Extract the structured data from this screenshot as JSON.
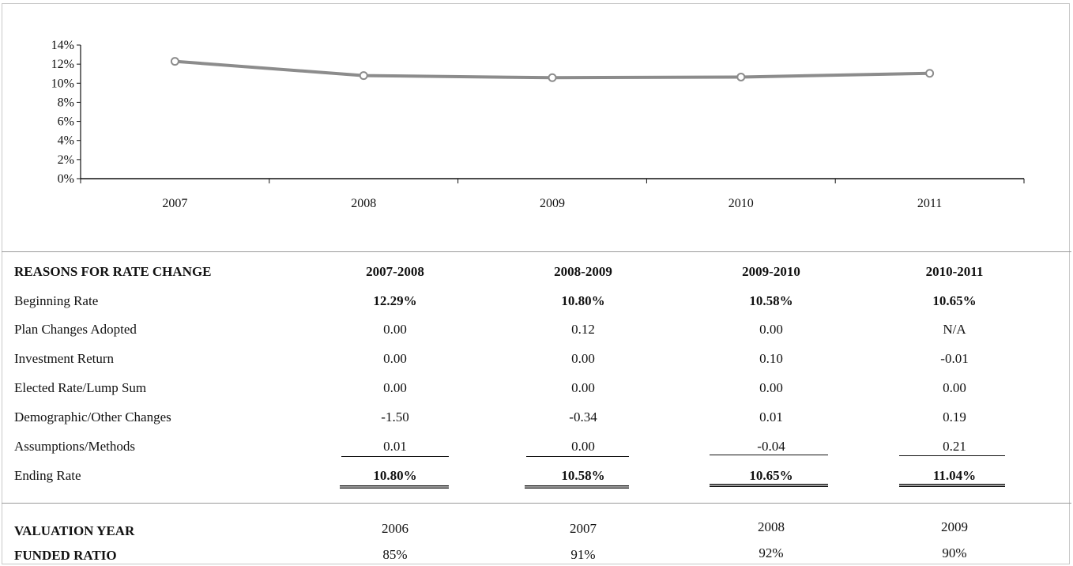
{
  "chart_data": {
    "type": "line",
    "x": [
      "2007",
      "2008",
      "2009",
      "2010",
      "2011"
    ],
    "series": [
      {
        "values": [
          12.29,
          10.8,
          10.58,
          10.65,
          11.04
        ]
      }
    ],
    "y_ticks": [
      "14%",
      "12%",
      "10%",
      "8%",
      "6%",
      "4%",
      "2%",
      "0%"
    ],
    "ylim": [
      0,
      14
    ],
    "line_color": "#8c8c8c",
    "marker": "circle",
    "grid": false
  },
  "table": {
    "header": {
      "label": "REASONS FOR RATE CHANGE",
      "periods": [
        "2007-2008",
        "2008-2009",
        "2009-2010",
        "2010-2011"
      ]
    },
    "rows": [
      {
        "label": "Beginning Rate",
        "values": [
          "12.29%",
          "10.80%",
          "10.58%",
          "10.65%"
        ]
      },
      {
        "label": "Plan Changes Adopted",
        "values": [
          "0.00",
          "0.12",
          "0.00",
          "N/A"
        ]
      },
      {
        "label": "Investment Return",
        "values": [
          "0.00",
          "0.00",
          "0.10",
          "-0.01"
        ]
      },
      {
        "label": "Elected Rate/Lump Sum",
        "values": [
          "0.00",
          "0.00",
          "0.00",
          "0.00"
        ]
      },
      {
        "label": "Demographic/Other Changes",
        "values": [
          "-1.50",
          "-0.34",
          "0.01",
          "0.19"
        ]
      },
      {
        "label": "Assumptions/Methods",
        "values": [
          "0.01",
          "0.00",
          "-0.04",
          "0.21"
        ]
      },
      {
        "label": "Ending Rate",
        "values": [
          "10.80%",
          "10.58%",
          "10.65%",
          "11.04%"
        ]
      }
    ]
  },
  "valuation": {
    "year_label": "VALUATION YEAR",
    "years": [
      "2006",
      "2007",
      "2008",
      "2009"
    ],
    "ratio_label": "FUNDED RATIO",
    "ratios": [
      "85%",
      "91%",
      "92%",
      "90%"
    ]
  }
}
